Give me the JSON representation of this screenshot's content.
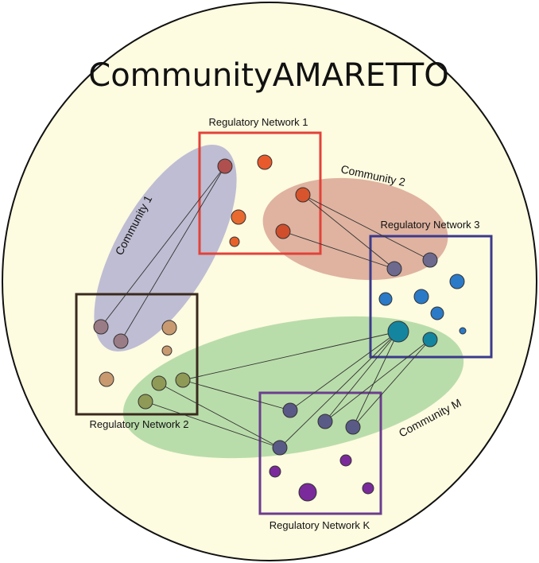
{
  "title": "CommunityAMARETTO",
  "colors": {
    "background_circle": "#fdfbe0",
    "circle_stroke": "#111111",
    "community_1": "#a8a8cf",
    "community_2": "#cf8c7e",
    "community_m": "#95cc8e",
    "network_1": "#e2423a",
    "network_2": "#3a2a1e",
    "network_3": "#3b3a8c",
    "network_k": "#6b3d8f"
  },
  "communities": [
    {
      "id": "community-1",
      "label": "Community 1"
    },
    {
      "id": "community-2",
      "label": "Community 2"
    },
    {
      "id": "community-m",
      "label": "Community M"
    }
  ],
  "networks": [
    {
      "id": "network-1",
      "label": "Regulatory Network 1"
    },
    {
      "id": "network-2",
      "label": "Regulatory Network 2"
    },
    {
      "id": "network-3",
      "label": "Regulatory Network 3"
    },
    {
      "id": "network-k",
      "label": "Regulatory Network K"
    }
  ]
}
